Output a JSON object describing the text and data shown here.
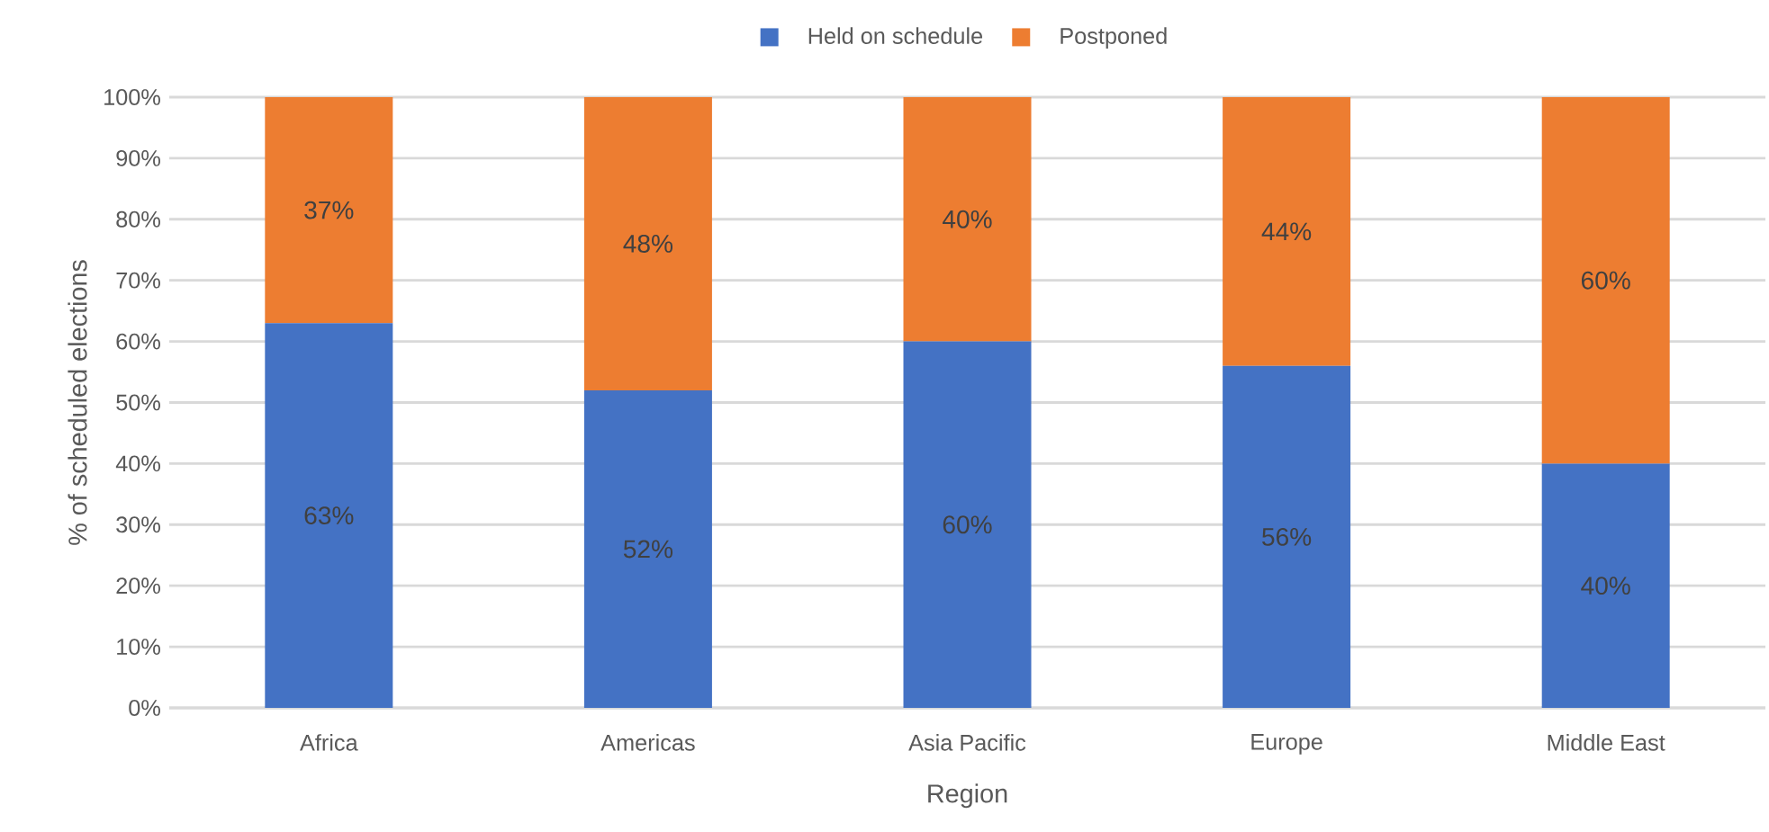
{
  "chart_data": {
    "type": "bar",
    "stacked": true,
    "xlabel": "Region",
    "ylabel": "% of scheduled elections",
    "categories": [
      "Africa",
      "Americas",
      "Asia Pacific",
      "Europe",
      "Middle East"
    ],
    "series": [
      {
        "name": "Held on schedule",
        "color": "#4472c4",
        "values": [
          63,
          52,
          60,
          56,
          40
        ],
        "value_labels": [
          "63%",
          "52%",
          "60%",
          "56%",
          "40%"
        ]
      },
      {
        "name": "Postponed",
        "color": "#ed7d31",
        "values": [
          37,
          48,
          40,
          44,
          60
        ],
        "value_labels": [
          "37%",
          "48%",
          "40%",
          "44%",
          "60%"
        ]
      }
    ],
    "ylim": [
      0,
      100
    ],
    "yticks": [
      {
        "value": 0,
        "label": "0%"
      },
      {
        "value": 10,
        "label": "10%"
      },
      {
        "value": 20,
        "label": "20%"
      },
      {
        "value": 30,
        "label": "30%"
      },
      {
        "value": 40,
        "label": "40%"
      },
      {
        "value": 50,
        "label": "50%"
      },
      {
        "value": 60,
        "label": "60%"
      },
      {
        "value": 70,
        "label": "70%"
      },
      {
        "value": 80,
        "label": "80%"
      },
      {
        "value": 90,
        "label": "90%"
      },
      {
        "value": 100,
        "label": "100%"
      }
    ],
    "grid": "y",
    "legend": "top"
  }
}
